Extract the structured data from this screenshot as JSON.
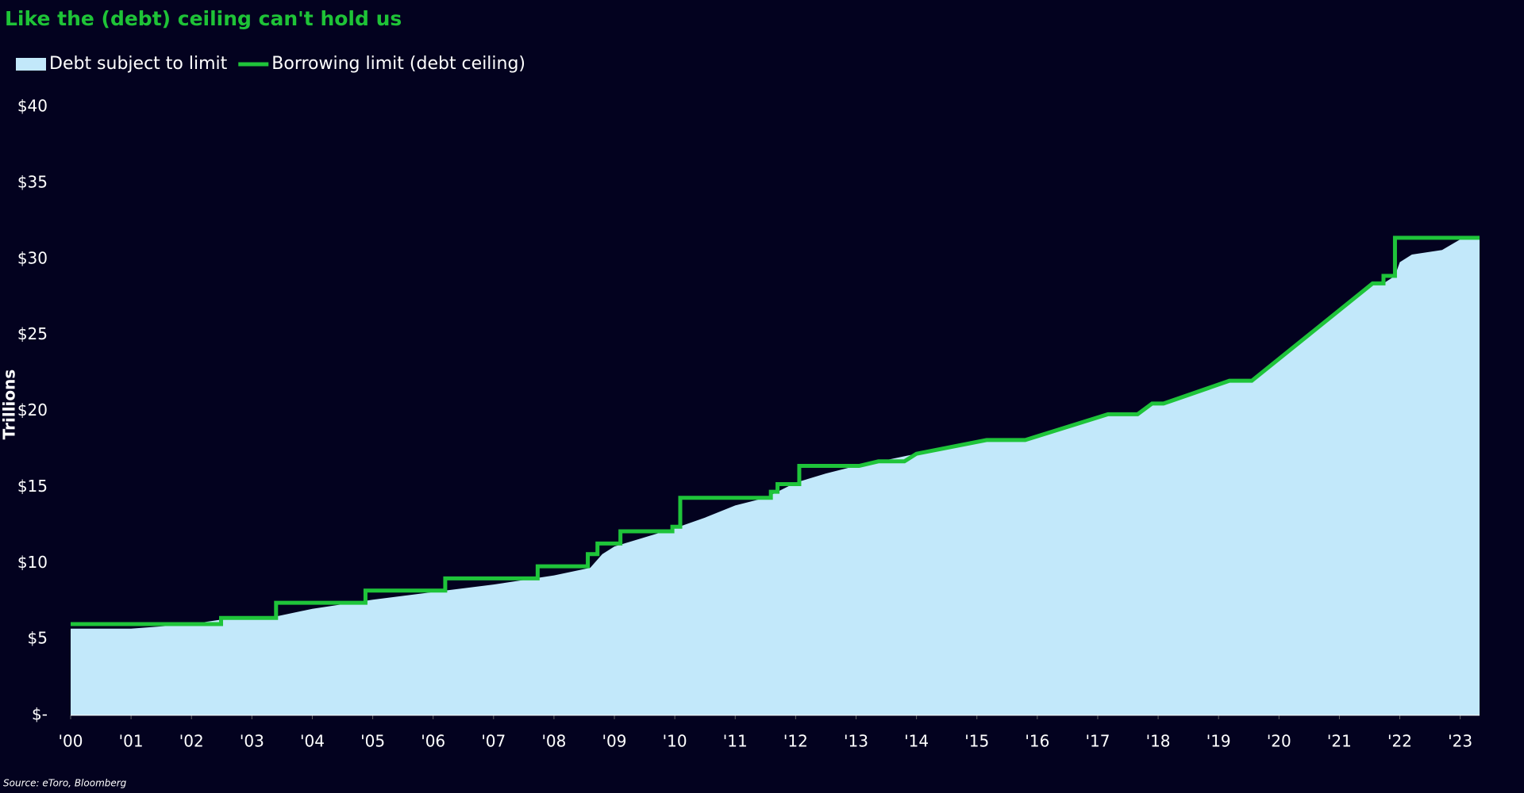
{
  "chart_data": {
    "type": "line",
    "title": "Like the (debt) ceiling can't hold us",
    "y_label": "Trillions",
    "source": "Source: eToro, Bloomberg",
    "background": "#03021f",
    "title_color": "#1ec337",
    "xlim": [
      2000,
      2023.32
    ],
    "xticks": [
      {
        "value": 2000,
        "label": "'00"
      },
      {
        "value": 2001,
        "label": "'01"
      },
      {
        "value": 2002,
        "label": "'02"
      },
      {
        "value": 2003,
        "label": "'03"
      },
      {
        "value": 2004,
        "label": "'04"
      },
      {
        "value": 2005,
        "label": "'05"
      },
      {
        "value": 2006,
        "label": "'06"
      },
      {
        "value": 2007,
        "label": "'07"
      },
      {
        "value": 2008,
        "label": "'08"
      },
      {
        "value": 2009,
        "label": "'09"
      },
      {
        "value": 2010,
        "label": "'10"
      },
      {
        "value": 2011,
        "label": "'11"
      },
      {
        "value": 2012,
        "label": "'12"
      },
      {
        "value": 2013,
        "label": "'13"
      },
      {
        "value": 2014,
        "label": "'14"
      },
      {
        "value": 2015,
        "label": "'15"
      },
      {
        "value": 2016,
        "label": "'16"
      },
      {
        "value": 2017,
        "label": "'17"
      },
      {
        "value": 2018,
        "label": "'18"
      },
      {
        "value": 2019,
        "label": "'19"
      },
      {
        "value": 2020,
        "label": "'20"
      },
      {
        "value": 2021,
        "label": "'21"
      },
      {
        "value": 2022,
        "label": "'22"
      },
      {
        "value": 2023,
        "label": "'23"
      }
    ],
    "ylim": [
      0,
      40
    ],
    "yticks": [
      {
        "value": 40,
        "label": "$40"
      },
      {
        "value": 35,
        "label": "$35"
      },
      {
        "value": 30,
        "label": "$30"
      },
      {
        "value": 25,
        "label": "$25"
      },
      {
        "value": 20,
        "label": "$20"
      },
      {
        "value": 15,
        "label": "$15"
      },
      {
        "value": 10,
        "label": "$10"
      },
      {
        "value": 5,
        "label": "$5"
      },
      {
        "value": 0,
        "label": "$-"
      }
    ],
    "grid": false,
    "legend": "top-left",
    "series": [
      {
        "name": "Debt subject to limit",
        "kind": "area",
        "color": "#c2e8fa",
        "x": [
          2000,
          2001,
          2002,
          2002.5,
          2003.4,
          2004,
          2005,
          2006,
          2007,
          2008,
          2008.6,
          2008.8,
          2009,
          2010,
          2010.5,
          2011,
          2011.5,
          2012,
          2012.5,
          2013,
          2013.4,
          2014,
          2015.16,
          2015.8,
          2017.17,
          2017.66,
          2017.9,
          2018.09,
          2019.18,
          2019.55,
          2021.55,
          2021.73,
          2021.92,
          2022,
          2022.2,
          2022.7,
          2023,
          2023.32
        ],
        "values": [
          5.7,
          5.7,
          6.0,
          6.3,
          6.5,
          7.0,
          7.6,
          8.1,
          8.6,
          9.2,
          9.7,
          10.6,
          11.1,
          12.3,
          13.0,
          13.8,
          14.3,
          15.3,
          15.9,
          16.4,
          16.7,
          17.2,
          18.1,
          18.1,
          19.8,
          19.8,
          20.5,
          20.5,
          22.0,
          22.0,
          28.4,
          28.4,
          28.9,
          29.8,
          30.3,
          30.6,
          31.3,
          31.3
        ]
      },
      {
        "name": "Borrowing limit (debt ceiling)",
        "kind": "line",
        "color": "#1fc43a",
        "x": [
          2000,
          2002.49,
          2002.49,
          2003.4,
          2003.4,
          2004.88,
          2004.88,
          2006.2,
          2006.2,
          2007.73,
          2007.73,
          2008.56,
          2008.56,
          2008.72,
          2008.72,
          2009.1,
          2009.1,
          2009.96,
          2009.96,
          2010.09,
          2010.09,
          2011.59,
          2011.59,
          2011.7,
          2011.7,
          2012.06,
          2012.06,
          2013.05,
          2013.37,
          2013.8,
          2014.0,
          2015.16,
          2015.8,
          2017.17,
          2017.66,
          2017.9,
          2018.09,
          2019.18,
          2019.55,
          2021.55,
          2021.73,
          2021.73,
          2021.92,
          2021.92,
          2023.32
        ],
        "values": [
          6.0,
          6.0,
          6.4,
          6.4,
          7.4,
          7.4,
          8.2,
          8.2,
          9.0,
          9.0,
          9.8,
          9.8,
          10.6,
          10.6,
          11.3,
          11.3,
          12.1,
          12.1,
          12.4,
          12.4,
          14.3,
          14.3,
          14.7,
          14.7,
          15.2,
          15.2,
          16.4,
          16.4,
          16.7,
          16.7,
          17.2,
          18.1,
          18.1,
          19.8,
          19.8,
          20.5,
          20.5,
          22.0,
          22.0,
          28.4,
          28.4,
          28.9,
          28.9,
          31.4,
          31.4
        ]
      }
    ]
  }
}
